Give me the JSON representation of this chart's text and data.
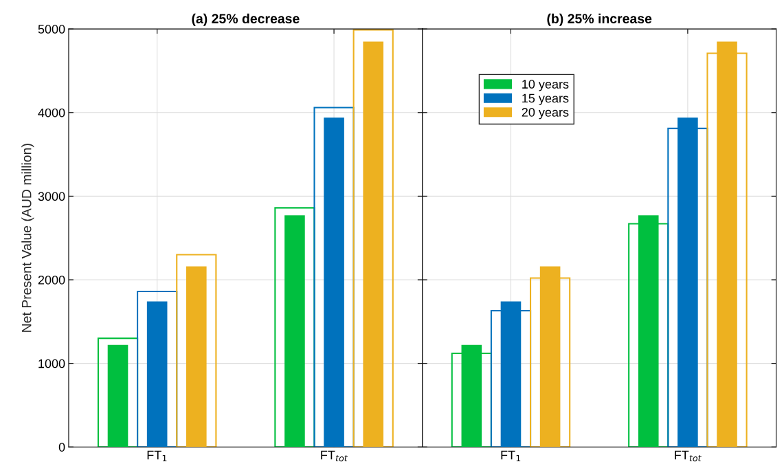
{
  "chart_data": [
    {
      "type": "bar",
      "title": "(a) 25% decrease",
      "ylabel": "Net Present Value (AUD million)",
      "categories": [
        "FT$_{1}$",
        "FT$_{tot}$"
      ],
      "ylim": [
        0,
        5000
      ],
      "yticks": [
        0,
        1000,
        2000,
        3000,
        4000,
        5000
      ],
      "grid": true,
      "series": [
        {
          "color": "#00bf3f",
          "line_style": "solid",
          "values": [
            1300,
            2860
          ]
        },
        {
          "color": "#0072bd",
          "line_style": "solid",
          "values": [
            1860,
            4060
          ]
        },
        {
          "color": "#edb120",
          "line_style": "solid",
          "values": [
            2300,
            4990
          ]
        },
        {
          "color": "#00bf3f",
          "values": [
            1220,
            2770
          ]
        },
        {
          "color": "#0072bd",
          "values": [
            1740,
            3940
          ]
        },
        {
          "color": "#edb120",
          "values": [
            2160,
            4850
          ]
        }
      ]
    },
    {
      "type": "bar",
      "title": "(b) 25% increase",
      "categories": [
        "FT$_{1}$",
        "FT$_{tot}$"
      ],
      "ylim": [
        0,
        5000
      ],
      "yticks": [
        0,
        1000,
        2000,
        3000,
        4000,
        5000
      ],
      "grid": true,
      "legend": "top left",
      "tick_labels": "x",
      "series": [
        {
          "color": "#00bf3f",
          "line_style": "solid",
          "values": [
            1120,
            2670
          ]
        },
        {
          "color": "#0072bd",
          "line_style": "solid",
          "values": [
            1630,
            3810
          ]
        },
        {
          "color": "#edb120",
          "line_style": "solid",
          "values": [
            2020,
            4710
          ]
        },
        {
          "name": "10 years",
          "color": "#00bf3f",
          "values": [
            1220,
            2770
          ]
        },
        {
          "name": "15 years",
          "color": "#0072bd",
          "values": [
            1740,
            3940
          ]
        },
        {
          "name": "20 years",
          "color": "#edb120",
          "values": [
            2160,
            4850
          ]
        }
      ]
    }
  ]
}
